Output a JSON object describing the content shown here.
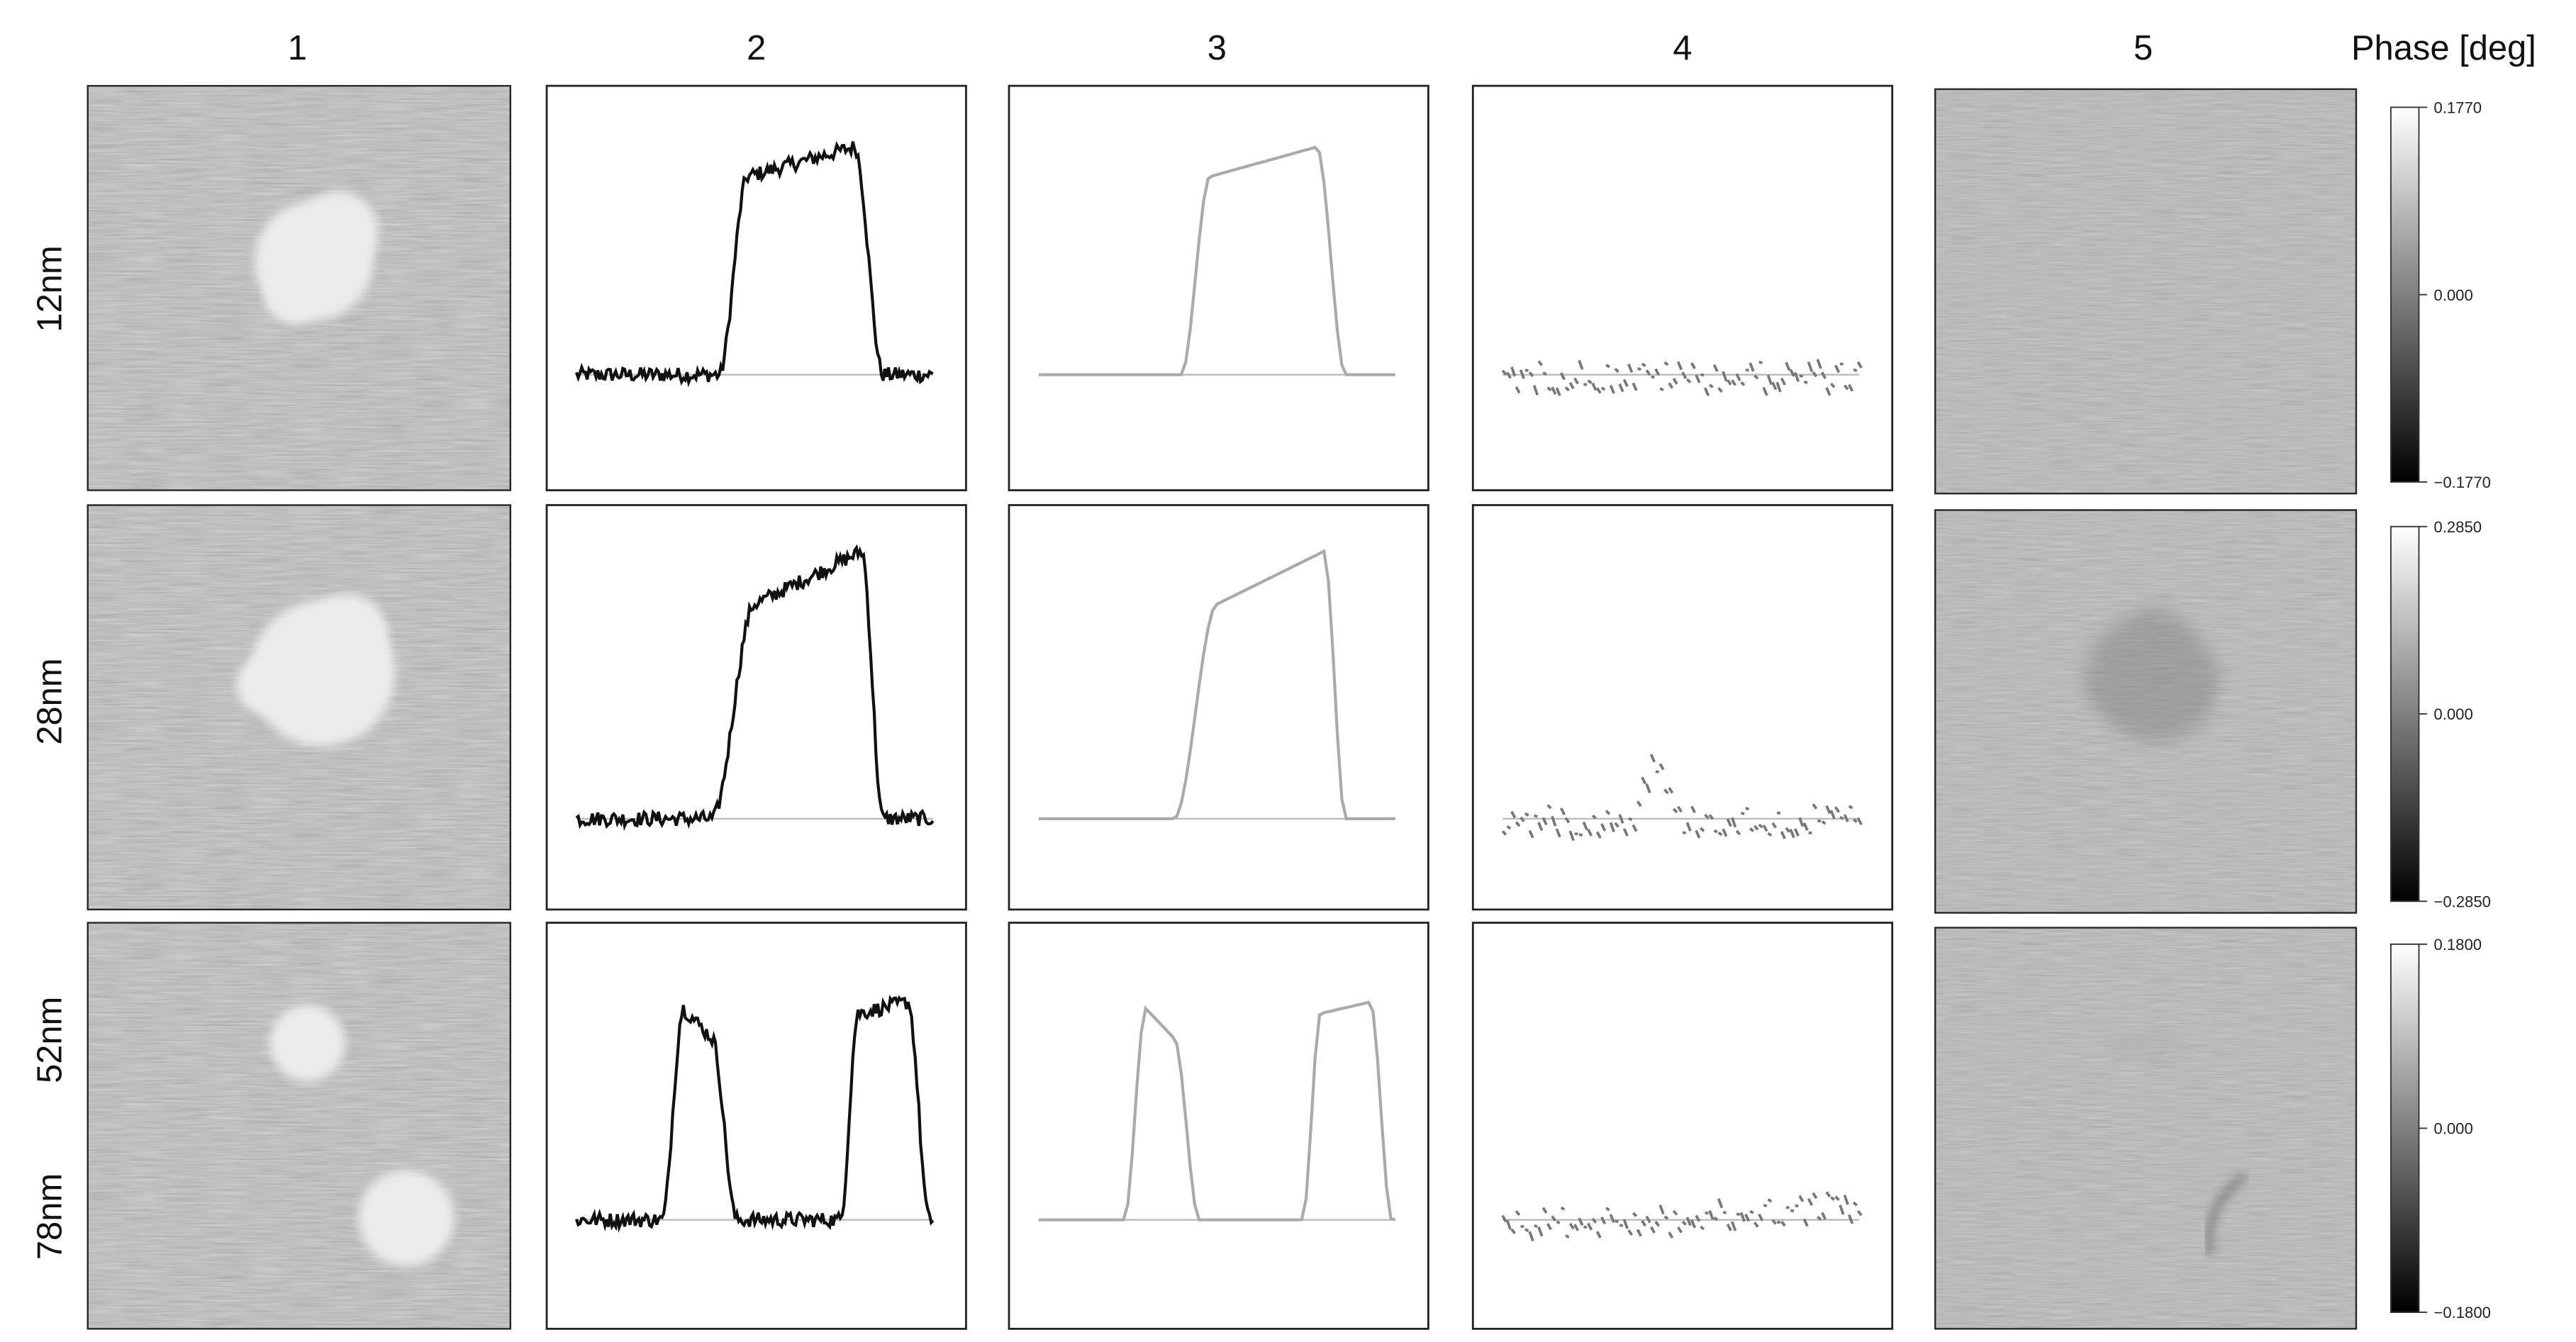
{
  "columns": [
    "1",
    "2",
    "3",
    "4",
    "5"
  ],
  "colorbar_title": "Phase [deg]",
  "rows": [
    {
      "labels": [
        "12nm"
      ],
      "colorbar": [
        "0.1770",
        "0.000",
        "−0.1770"
      ]
    },
    {
      "labels": [
        "28nm"
      ],
      "colorbar": [
        "0.2850",
        "0.000",
        "−0.2850"
      ]
    },
    {
      "labels": [
        "52nm",
        "78nm"
      ],
      "colorbar": [
        "0.1800",
        "0.000",
        "−0.1800"
      ]
    }
  ]
}
